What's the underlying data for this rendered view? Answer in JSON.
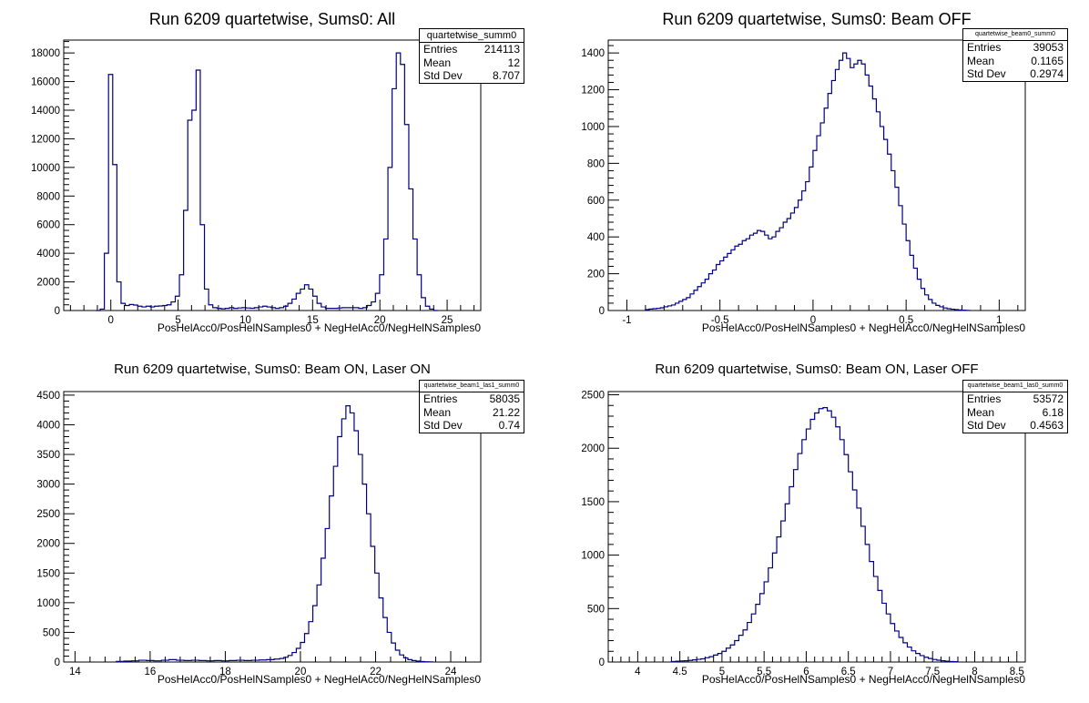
{
  "chart_data": [
    {
      "type": "histogram",
      "title": "Run 6209 quartetwise, Sums0: All",
      "xlabel": "PosHelAcc0/PosHelNSamples0 + NegHelAcc0/NegHelNSamples0",
      "ylabel": "",
      "xlim": [
        -3.5,
        27.5
      ],
      "ylim": [
        0,
        18900
      ],
      "xticks": [
        0,
        5,
        10,
        15,
        20,
        25
      ],
      "yticks": [
        0,
        2000,
        4000,
        6000,
        8000,
        10000,
        12000,
        14000,
        16000,
        18000
      ],
      "stats": {
        "name": "quartetwise_summ0",
        "entries": "214113",
        "mean": "12",
        "std_dev": "8.707"
      },
      "bin_width": 0.31,
      "bins": [
        [
          -1.1,
          0
        ],
        [
          -0.79,
          100
        ],
        [
          -0.48,
          4000
        ],
        [
          -0.17,
          16500
        ],
        [
          0.14,
          10200
        ],
        [
          0.45,
          2000
        ],
        [
          0.76,
          500
        ],
        [
          1.07,
          350
        ],
        [
          1.38,
          420
        ],
        [
          1.69,
          380
        ],
        [
          2.0,
          300
        ],
        [
          2.31,
          250
        ],
        [
          2.62,
          300
        ],
        [
          2.93,
          250
        ],
        [
          3.24,
          300
        ],
        [
          3.55,
          320
        ],
        [
          3.86,
          350
        ],
        [
          4.17,
          400
        ],
        [
          4.48,
          600
        ],
        [
          4.79,
          1000
        ],
        [
          5.1,
          2500
        ],
        [
          5.41,
          7000
        ],
        [
          5.72,
          13300
        ],
        [
          6.03,
          14000
        ],
        [
          6.34,
          16800
        ],
        [
          6.65,
          6000
        ],
        [
          6.96,
          1500
        ],
        [
          7.27,
          400
        ],
        [
          7.58,
          200
        ],
        [
          7.89,
          150
        ],
        [
          8.2,
          120
        ],
        [
          8.51,
          150
        ],
        [
          8.82,
          200
        ],
        [
          9.13,
          150
        ],
        [
          9.44,
          180
        ],
        [
          9.75,
          200
        ],
        [
          10.06,
          180
        ],
        [
          10.37,
          160
        ],
        [
          10.68,
          200
        ],
        [
          10.99,
          250
        ],
        [
          11.3,
          300
        ],
        [
          11.61,
          250
        ],
        [
          11.92,
          200
        ],
        [
          12.23,
          150
        ],
        [
          12.54,
          200
        ],
        [
          12.85,
          300
        ],
        [
          13.16,
          500
        ],
        [
          13.47,
          800
        ],
        [
          13.78,
          1200
        ],
        [
          14.09,
          1500
        ],
        [
          14.4,
          1800
        ],
        [
          14.71,
          1500
        ],
        [
          15.02,
          1000
        ],
        [
          15.33,
          500
        ],
        [
          15.64,
          250
        ],
        [
          15.95,
          150
        ],
        [
          16.26,
          150
        ],
        [
          16.57,
          150
        ],
        [
          16.88,
          180
        ],
        [
          17.19,
          200
        ],
        [
          17.5,
          200
        ],
        [
          17.81,
          200
        ],
        [
          18.12,
          200
        ],
        [
          18.43,
          150
        ],
        [
          18.74,
          200
        ],
        [
          19.05,
          350
        ],
        [
          19.36,
          600
        ],
        [
          19.67,
          1200
        ],
        [
          19.98,
          2500
        ],
        [
          20.29,
          5000
        ],
        [
          20.6,
          10000
        ],
        [
          20.91,
          15500
        ],
        [
          21.22,
          18000
        ],
        [
          21.53,
          17200
        ],
        [
          21.84,
          13000
        ],
        [
          22.15,
          8500
        ],
        [
          22.46,
          5000
        ],
        [
          22.77,
          2500
        ],
        [
          23.08,
          900
        ],
        [
          23.39,
          300
        ],
        [
          23.7,
          100
        ],
        [
          24.01,
          0
        ]
      ]
    },
    {
      "type": "histogram",
      "title": "Run 6209 quartetwise, Sums0: Beam OFF",
      "xlabel": "PosHelAcc0/PosHelNSamples0 + NegHelAcc0/NegHelNSamples0",
      "ylabel": "",
      "xlim": [
        -1.1,
        1.14
      ],
      "ylim": [
        0,
        1470
      ],
      "xticks": [
        -1,
        -0.5,
        0,
        0.5,
        1
      ],
      "yticks": [
        0,
        200,
        400,
        600,
        800,
        1000,
        1200,
        1400
      ],
      "stats": {
        "name": "quartetwise_beam0_summ0",
        "entries": "39053",
        "mean": "0.1165",
        "std_dev": "0.2974"
      },
      "bin_width": 0.02,
      "bins": [
        [
          -0.9,
          5
        ],
        [
          -0.88,
          8
        ],
        [
          -0.86,
          10
        ],
        [
          -0.84,
          12
        ],
        [
          -0.82,
          15
        ],
        [
          -0.8,
          20
        ],
        [
          -0.78,
          25
        ],
        [
          -0.76,
          30
        ],
        [
          -0.74,
          40
        ],
        [
          -0.72,
          50
        ],
        [
          -0.7,
          60
        ],
        [
          -0.68,
          70
        ],
        [
          -0.66,
          90
        ],
        [
          -0.64,
          110
        ],
        [
          -0.62,
          130
        ],
        [
          -0.6,
          150
        ],
        [
          -0.58,
          170
        ],
        [
          -0.56,
          200
        ],
        [
          -0.54,
          220
        ],
        [
          -0.52,
          250
        ],
        [
          -0.5,
          270
        ],
        [
          -0.48,
          290
        ],
        [
          -0.46,
          310
        ],
        [
          -0.44,
          330
        ],
        [
          -0.42,
          350
        ],
        [
          -0.4,
          360
        ],
        [
          -0.38,
          380
        ],
        [
          -0.36,
          390
        ],
        [
          -0.34,
          410
        ],
        [
          -0.32,
          420
        ],
        [
          -0.3,
          435
        ],
        [
          -0.28,
          430
        ],
        [
          -0.26,
          410
        ],
        [
          -0.24,
          390
        ],
        [
          -0.22,
          400
        ],
        [
          -0.2,
          430
        ],
        [
          -0.18,
          450
        ],
        [
          -0.16,
          480
        ],
        [
          -0.14,
          500
        ],
        [
          -0.12,
          530
        ],
        [
          -0.1,
          560
        ],
        [
          -0.08,
          600
        ],
        [
          -0.06,
          650
        ],
        [
          -0.04,
          700
        ],
        [
          -0.02,
          780
        ],
        [
          0.0,
          870
        ],
        [
          0.02,
          950
        ],
        [
          0.04,
          1020
        ],
        [
          0.06,
          1100
        ],
        [
          0.08,
          1180
        ],
        [
          0.1,
          1250
        ],
        [
          0.12,
          1310
        ],
        [
          0.14,
          1360
        ],
        [
          0.16,
          1400
        ],
        [
          0.18,
          1370
        ],
        [
          0.2,
          1320
        ],
        [
          0.22,
          1340
        ],
        [
          0.24,
          1360
        ],
        [
          0.26,
          1340
        ],
        [
          0.28,
          1280
        ],
        [
          0.3,
          1220
        ],
        [
          0.32,
          1150
        ],
        [
          0.34,
          1080
        ],
        [
          0.36,
          1000
        ],
        [
          0.38,
          930
        ],
        [
          0.4,
          850
        ],
        [
          0.42,
          760
        ],
        [
          0.44,
          670
        ],
        [
          0.46,
          570
        ],
        [
          0.48,
          470
        ],
        [
          0.5,
          380
        ],
        [
          0.52,
          300
        ],
        [
          0.54,
          230
        ],
        [
          0.56,
          170
        ],
        [
          0.58,
          120
        ],
        [
          0.6,
          85
        ],
        [
          0.62,
          60
        ],
        [
          0.64,
          40
        ],
        [
          0.66,
          28
        ],
        [
          0.68,
          20
        ],
        [
          0.7,
          14
        ],
        [
          0.72,
          10
        ],
        [
          0.74,
          7
        ],
        [
          0.76,
          5
        ],
        [
          0.78,
          3
        ],
        [
          0.8,
          2
        ],
        [
          0.82,
          1
        ]
      ]
    },
    {
      "type": "histogram",
      "title": "Run 6209 quartetwise, Sums0: Beam ON, Laser ON",
      "xlabel": "PosHelAcc0/PosHelNSamples0 + NegHelAcc0/NegHelNSamples0",
      "ylabel": "",
      "xlim": [
        13.7,
        24.8
      ],
      "ylim": [
        0,
        4560
      ],
      "xticks": [
        14,
        16,
        18,
        20,
        22,
        24
      ],
      "yticks": [
        0,
        500,
        1000,
        1500,
        2000,
        2500,
        3000,
        3500,
        4000,
        4500
      ],
      "stats": {
        "name": "quartetwise_beam1_las1_summ0",
        "entries": "58035",
        "mean": "21.22",
        "std_dev": "0.74"
      },
      "bin_width": 0.11,
      "bins": [
        [
          15.1,
          10
        ],
        [
          15.3,
          15
        ],
        [
          15.5,
          20
        ],
        [
          15.7,
          30
        ],
        [
          15.9,
          25
        ],
        [
          16.1,
          20
        ],
        [
          16.3,
          30
        ],
        [
          16.5,
          40
        ],
        [
          16.7,
          30
        ],
        [
          16.9,
          25
        ],
        [
          17.1,
          30
        ],
        [
          17.3,
          25
        ],
        [
          17.5,
          20
        ],
        [
          17.7,
          25
        ],
        [
          17.9,
          20
        ],
        [
          18.1,
          25
        ],
        [
          18.3,
          30
        ],
        [
          18.5,
          25
        ],
        [
          18.7,
          30
        ],
        [
          18.9,
          35
        ],
        [
          19.1,
          40
        ],
        [
          19.3,
          50
        ],
        [
          19.45,
          60
        ],
        [
          19.56,
          80
        ],
        [
          19.67,
          110
        ],
        [
          19.78,
          160
        ],
        [
          19.89,
          230
        ],
        [
          20.0,
          330
        ],
        [
          20.11,
          480
        ],
        [
          20.22,
          680
        ],
        [
          20.33,
          950
        ],
        [
          20.44,
          1300
        ],
        [
          20.55,
          1750
        ],
        [
          20.66,
          2250
        ],
        [
          20.77,
          2800
        ],
        [
          20.88,
          3300
        ],
        [
          20.99,
          3800
        ],
        [
          21.1,
          4100
        ],
        [
          21.21,
          4320
        ],
        [
          21.32,
          4200
        ],
        [
          21.43,
          3900
        ],
        [
          21.54,
          3500
        ],
        [
          21.65,
          3000
        ],
        [
          21.76,
          2500
        ],
        [
          21.87,
          1950
        ],
        [
          21.98,
          1500
        ],
        [
          22.09,
          1080
        ],
        [
          22.2,
          750
        ],
        [
          22.31,
          500
        ],
        [
          22.42,
          320
        ],
        [
          22.53,
          200
        ],
        [
          22.64,
          120
        ],
        [
          22.75,
          70
        ],
        [
          22.86,
          40
        ],
        [
          22.97,
          25
        ],
        [
          23.08,
          15
        ],
        [
          23.19,
          8
        ],
        [
          23.3,
          5
        ],
        [
          23.41,
          3
        ]
      ]
    },
    {
      "type": "histogram",
      "title": "Run 6209 quartetwise, Sums0: Beam ON, Laser OFF",
      "xlabel": "PosHelAcc0/PosHelNSamples0 + NegHelAcc0/NegHelNSamples0",
      "ylabel": "",
      "xlim": [
        3.65,
        8.6
      ],
      "ylim": [
        0,
        2530
      ],
      "xticks": [
        4,
        4.5,
        5,
        5.5,
        6,
        6.5,
        7,
        7.5,
        8,
        8.5
      ],
      "yticks": [
        0,
        500,
        1000,
        1500,
        2000,
        2500
      ],
      "stats": {
        "name": "quartetwise_beam1_las0_summ0",
        "entries": "53572",
        "mean": "6.18",
        "std_dev": "0.4563"
      },
      "bin_width": 0.05,
      "bins": [
        [
          4.4,
          5
        ],
        [
          4.45,
          8
        ],
        [
          4.5,
          10
        ],
        [
          4.55,
          12
        ],
        [
          4.6,
          15
        ],
        [
          4.65,
          20
        ],
        [
          4.7,
          25
        ],
        [
          4.75,
          30
        ],
        [
          4.8,
          40
        ],
        [
          4.85,
          50
        ],
        [
          4.9,
          65
        ],
        [
          4.95,
          80
        ],
        [
          5.0,
          100
        ],
        [
          5.05,
          130
        ],
        [
          5.1,
          160
        ],
        [
          5.15,
          200
        ],
        [
          5.2,
          250
        ],
        [
          5.25,
          300
        ],
        [
          5.3,
          370
        ],
        [
          5.35,
          450
        ],
        [
          5.4,
          540
        ],
        [
          5.45,
          640
        ],
        [
          5.5,
          750
        ],
        [
          5.55,
          880
        ],
        [
          5.6,
          1020
        ],
        [
          5.65,
          1170
        ],
        [
          5.7,
          1320
        ],
        [
          5.75,
          1480
        ],
        [
          5.8,
          1640
        ],
        [
          5.85,
          1800
        ],
        [
          5.9,
          1950
        ],
        [
          5.95,
          2080
        ],
        [
          6.0,
          2180
        ],
        [
          6.05,
          2270
        ],
        [
          6.1,
          2330
        ],
        [
          6.15,
          2370
        ],
        [
          6.2,
          2380
        ],
        [
          6.25,
          2350
        ],
        [
          6.3,
          2290
        ],
        [
          6.35,
          2200
        ],
        [
          6.4,
          2080
        ],
        [
          6.45,
          1940
        ],
        [
          6.5,
          1780
        ],
        [
          6.55,
          1610
        ],
        [
          6.6,
          1440
        ],
        [
          6.65,
          1270
        ],
        [
          6.7,
          1100
        ],
        [
          6.75,
          940
        ],
        [
          6.8,
          800
        ],
        [
          6.85,
          670
        ],
        [
          6.9,
          550
        ],
        [
          6.95,
          450
        ],
        [
          7.0,
          360
        ],
        [
          7.05,
          290
        ],
        [
          7.1,
          230
        ],
        [
          7.15,
          180
        ],
        [
          7.2,
          140
        ],
        [
          7.25,
          105
        ],
        [
          7.3,
          80
        ],
        [
          7.35,
          60
        ],
        [
          7.4,
          45
        ],
        [
          7.45,
          33
        ],
        [
          7.5,
          24
        ],
        [
          7.55,
          17
        ],
        [
          7.6,
          12
        ],
        [
          7.65,
          8
        ],
        [
          7.7,
          5
        ],
        [
          7.75,
          3
        ]
      ]
    }
  ]
}
